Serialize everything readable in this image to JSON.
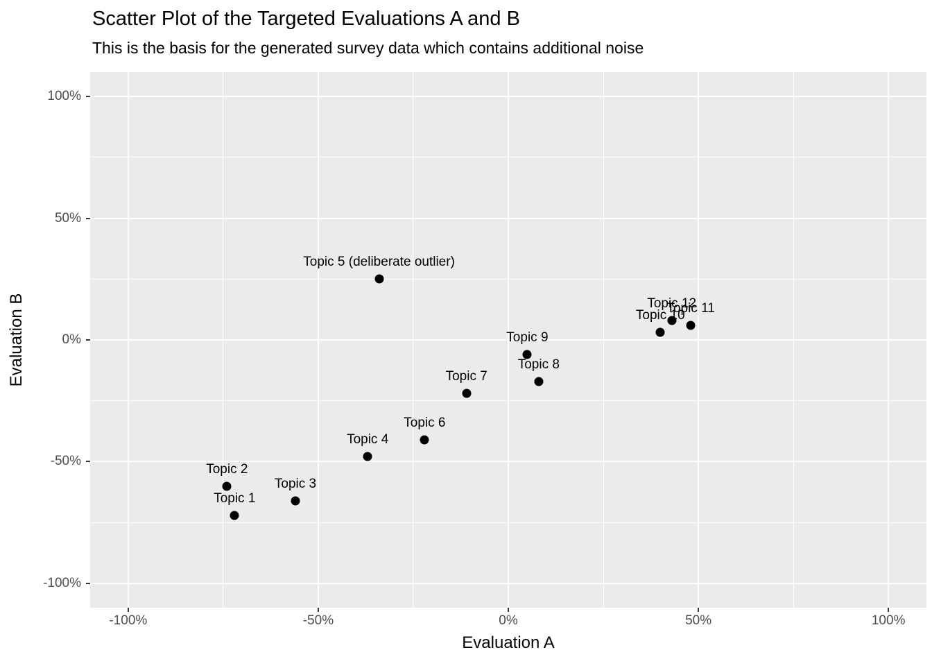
{
  "chart_data": {
    "type": "scatter",
    "title": "Scatter Plot of the Targeted Evaluations A and B",
    "subtitle": "This is the basis for the generated survey data which contains additional noise",
    "xlabel": "Evaluation A",
    "ylabel": "Evaluation B",
    "units": "percent",
    "xlim": [
      -110,
      110
    ],
    "ylim": [
      -110,
      110
    ],
    "grid": "on",
    "legend_position": "none",
    "x_major_ticks": {
      "values": [
        -100,
        -50,
        0,
        50,
        100
      ],
      "labels": [
        "-100%",
        "-50%",
        "0%",
        "50%",
        "100%"
      ]
    },
    "y_major_ticks": {
      "values": [
        -100,
        -50,
        0,
        50,
        100
      ],
      "labels": [
        "-100%",
        "-50%",
        "0%",
        "50%",
        "100%"
      ]
    },
    "x_minor_ticks": [
      -75,
      -25,
      25,
      75
    ],
    "y_minor_ticks": [
      -75,
      -25,
      25,
      75
    ],
    "points": [
      {
        "label": "Topic 1",
        "x": -72,
        "y": -72
      },
      {
        "label": "Topic 2",
        "x": -74,
        "y": -60
      },
      {
        "label": "Topic 3",
        "x": -56,
        "y": -66
      },
      {
        "label": "Topic 4",
        "x": -37,
        "y": -48
      },
      {
        "label": "Topic 5 (deliberate outlier)",
        "x": -34,
        "y": 25
      },
      {
        "label": "Topic 6",
        "x": -22,
        "y": -41
      },
      {
        "label": "Topic 7",
        "x": -11,
        "y": -22
      },
      {
        "label": "Topic 8",
        "x": 8,
        "y": -17
      },
      {
        "label": "Topic 9",
        "x": 5,
        "y": -6
      },
      {
        "label": "Topic 10",
        "x": 40,
        "y": 3
      },
      {
        "label": "Topic 11",
        "x": 48,
        "y": 6
      },
      {
        "label": "Topic 12",
        "x": 43,
        "y": 8
      }
    ],
    "colors": {
      "page_bg": "#FFFFFF",
      "panel_bg": "#EBEBEB",
      "grid": "#FFFFFF",
      "point": "#000000",
      "point_label": "#000000",
      "tick_label": "#4D4D4D",
      "tick_mark": "#333333",
      "title_text": "#000000"
    }
  }
}
